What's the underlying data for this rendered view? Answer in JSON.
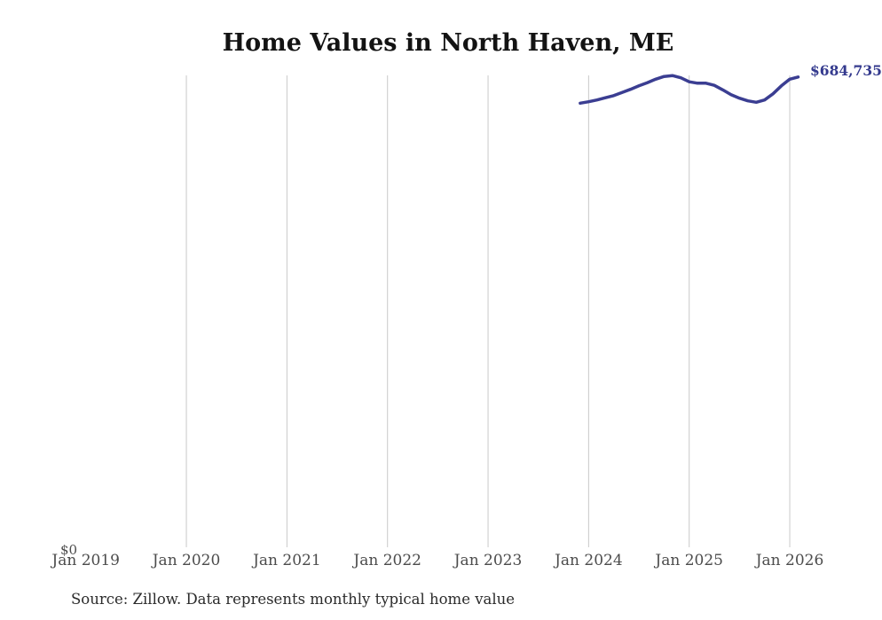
{
  "chart_data": {
    "type": "line",
    "title": "Home Values in North Haven, ME",
    "source_note": "Source: Zillow. Data represents monthly typical home value",
    "last_value_label": "$684,735",
    "last_value_color": "#343a8e",
    "grid_color": "#c9c9c9",
    "label_color": "#4c4c4c",
    "legend": "none",
    "y_axis": {
      "min": 0,
      "max": 687000,
      "zero_label": "$0"
    },
    "x_ticks": [
      {
        "label": "Jan 2019",
        "gridline": false
      },
      {
        "label": "Jan 2020",
        "gridline": true
      },
      {
        "label": "Jan 2021",
        "gridline": true
      },
      {
        "label": "Jan 2022",
        "gridline": true
      },
      {
        "label": "Jan 2023",
        "gridline": true
      },
      {
        "label": "Jan 2024",
        "gridline": true
      },
      {
        "label": "Jan 2025",
        "gridline": true
      },
      {
        "label": "Jan 2026",
        "gridline": true
      }
    ],
    "series": [
      {
        "name": "Monthly typical home value",
        "color": "#3b3e92",
        "points": [
          {
            "date": "Dec 2023",
            "value": 646600
          },
          {
            "date": "Jan 2024",
            "value": 648600
          },
          {
            "date": "Feb 2024",
            "value": 651200
          },
          {
            "date": "Mar 2024",
            "value": 654400
          },
          {
            "date": "Apr 2024",
            "value": 657600
          },
          {
            "date": "May 2024",
            "value": 662200
          },
          {
            "date": "Jun 2024",
            "value": 666700
          },
          {
            "date": "Jul 2024",
            "value": 671800
          },
          {
            "date": "Aug 2024",
            "value": 676400
          },
          {
            "date": "Sep 2024",
            "value": 681500
          },
          {
            "date": "Oct 2024",
            "value": 685400
          },
          {
            "date": "Nov 2024",
            "value": 686700
          },
          {
            "date": "Dec 2024",
            "value": 683500
          },
          {
            "date": "Jan 2025",
            "value": 677700
          },
          {
            "date": "Feb 2025",
            "value": 675700
          },
          {
            "date": "Mar 2025",
            "value": 675700
          },
          {
            "date": "Apr 2025",
            "value": 672500
          },
          {
            "date": "May 2025",
            "value": 666000
          },
          {
            "date": "Jun 2025",
            "value": 658900
          },
          {
            "date": "Jul 2025",
            "value": 653800
          },
          {
            "date": "Aug 2025",
            "value": 649900
          },
          {
            "date": "Sep 2025",
            "value": 647900
          },
          {
            "date": "Oct 2025",
            "value": 651200
          },
          {
            "date": "Nov 2025",
            "value": 660200
          },
          {
            "date": "Dec 2025",
            "value": 671800
          },
          {
            "date": "Jan 2026",
            "value": 681500
          },
          {
            "date": "Feb 2026",
            "value": 684735
          }
        ]
      }
    ]
  }
}
